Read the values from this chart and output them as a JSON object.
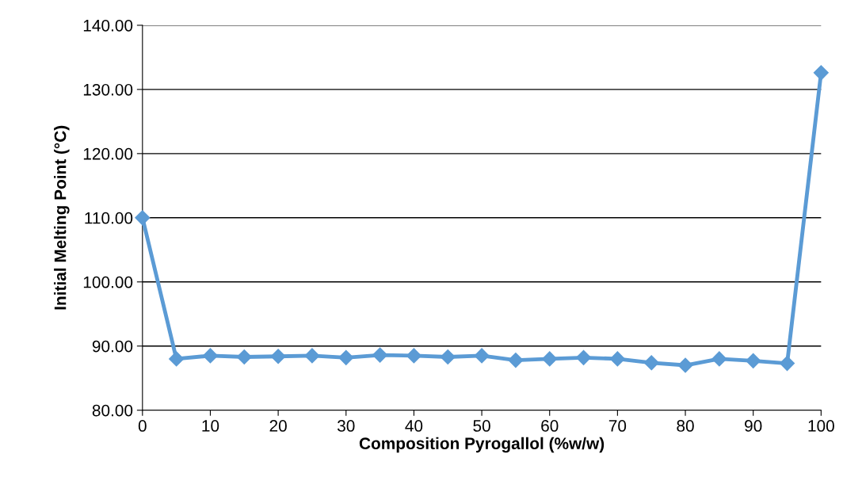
{
  "chart_data": {
    "type": "line",
    "xlabel": "Composition Pyrogallol (%w/w)",
    "ylabel": "Initial Melting Point (°C)",
    "x": [
      0,
      5,
      10,
      15,
      20,
      25,
      30,
      35,
      40,
      45,
      50,
      55,
      60,
      65,
      70,
      75,
      80,
      85,
      90,
      95,
      100
    ],
    "series": [
      {
        "color": "#5b9bd5",
        "values": [
          110.0,
          88.0,
          88.5,
          88.3,
          88.4,
          88.5,
          88.2,
          88.6,
          88.5,
          88.3,
          88.5,
          87.8,
          88.0,
          88.2,
          88.0,
          87.4,
          87.0,
          88.0,
          87.7,
          87.3,
          132.6
        ]
      }
    ],
    "xlim": [
      0,
      100
    ],
    "xticks": [
      0,
      10,
      20,
      30,
      40,
      50,
      60,
      70,
      80,
      90,
      100
    ],
    "ylim": [
      80,
      140
    ],
    "yticks": [
      {
        "value": 80,
        "label": "80.00"
      },
      {
        "value": 90,
        "label": "90.00"
      },
      {
        "value": 100,
        "label": "100.00"
      },
      {
        "value": 110,
        "label": "110.00"
      },
      {
        "value": 120,
        "label": "120.00"
      },
      {
        "value": 130,
        "label": "130.00"
      },
      {
        "value": 140,
        "label": "140.00"
      }
    ],
    "grid": "y",
    "marker": "diamond",
    "line_style": "solid"
  }
}
